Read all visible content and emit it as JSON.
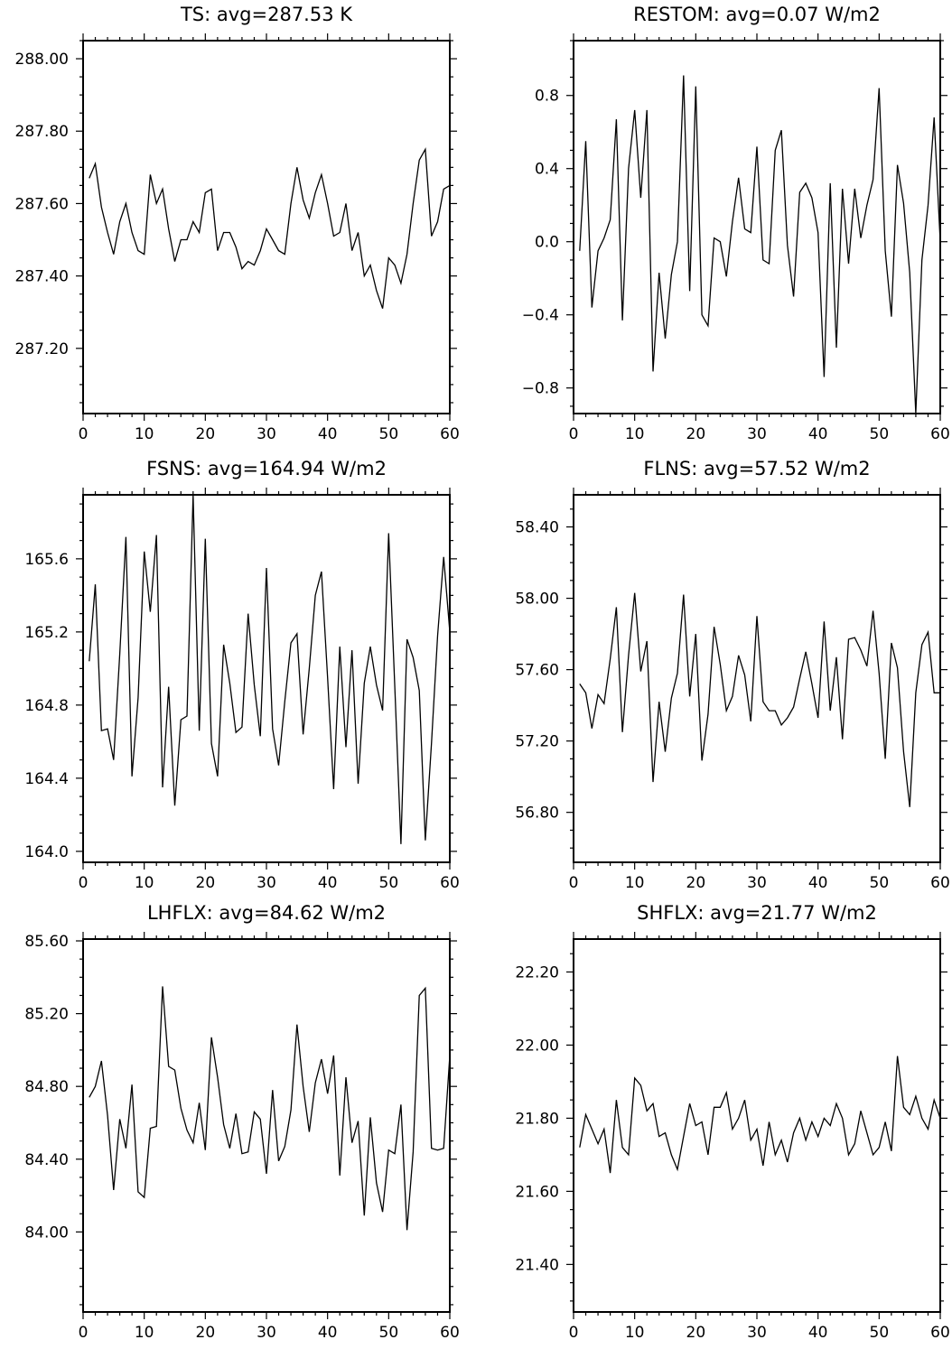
{
  "chart_data": [
    {
      "type": "line",
      "title": "TS: avg=287.53 K",
      "xlim": [
        0,
        60
      ],
      "ylim": [
        287.02,
        288.05
      ],
      "xticks": [
        0,
        10,
        20,
        30,
        40,
        50,
        60
      ],
      "xtick_labels": [
        "0",
        "10",
        "20",
        "30",
        "40",
        "50",
        "60"
      ],
      "yticks": [
        287.2,
        287.4,
        287.6,
        287.8,
        288.0
      ],
      "ytick_labels": [
        "287.20",
        "287.40",
        "287.60",
        "287.80",
        "288.00"
      ],
      "x": [
        1,
        2,
        3,
        4,
        5,
        6,
        7,
        8,
        9,
        10,
        11,
        12,
        13,
        14,
        15,
        16,
        17,
        18,
        19,
        20,
        21,
        22,
        23,
        24,
        25,
        26,
        27,
        28,
        29,
        30,
        31,
        32,
        33,
        34,
        35,
        36,
        37,
        38,
        39,
        40,
        41,
        42,
        43,
        44,
        45,
        46,
        47,
        48,
        49,
        50,
        51,
        52,
        53,
        54,
        55,
        56,
        57,
        58,
        59,
        60
      ],
      "values": [
        287.67,
        287.71,
        287.59,
        287.52,
        287.46,
        287.55,
        287.6,
        287.52,
        287.47,
        287.46,
        287.68,
        287.6,
        287.64,
        287.53,
        287.44,
        287.5,
        287.5,
        287.55,
        287.52,
        287.63,
        287.64,
        287.47,
        287.52,
        287.52,
        287.48,
        287.42,
        287.44,
        287.43,
        287.47,
        287.53,
        287.5,
        287.47,
        287.46,
        287.6,
        287.7,
        287.61,
        287.56,
        287.63,
        287.68,
        287.6,
        287.51,
        287.52,
        287.6,
        287.47,
        287.52,
        287.4,
        287.43,
        287.36,
        287.31,
        287.45,
        287.43,
        287.38,
        287.46,
        287.6,
        287.72,
        287.75,
        287.51,
        287.55,
        287.64,
        287.65
      ]
    },
    {
      "type": "line",
      "title": "RESTOM: avg=0.07 W/m2",
      "xlim": [
        0,
        60
      ],
      "ylim": [
        -0.94,
        1.1
      ],
      "xticks": [
        0,
        10,
        20,
        30,
        40,
        50,
        60
      ],
      "xtick_labels": [
        "0",
        "10",
        "20",
        "30",
        "40",
        "50",
        "60"
      ],
      "yticks": [
        -0.8,
        -0.4,
        0.0,
        0.4,
        0.8
      ],
      "ytick_labels": [
        "−0.8",
        "−0.4",
        "0.0",
        "0.4",
        "0.8"
      ],
      "x": [
        1,
        2,
        3,
        4,
        5,
        6,
        7,
        8,
        9,
        10,
        11,
        12,
        13,
        14,
        15,
        16,
        17,
        18,
        19,
        20,
        21,
        22,
        23,
        24,
        25,
        26,
        27,
        28,
        29,
        30,
        31,
        32,
        33,
        34,
        35,
        36,
        37,
        38,
        39,
        40,
        41,
        42,
        43,
        44,
        45,
        46,
        47,
        48,
        49,
        50,
        51,
        52,
        53,
        54,
        55,
        56,
        57,
        58,
        59,
        60
      ],
      "values": [
        -0.05,
        0.55,
        -0.36,
        -0.05,
        0.02,
        0.12,
        0.67,
        -0.43,
        0.4,
        0.72,
        0.24,
        0.72,
        -0.71,
        -0.17,
        -0.53,
        -0.18,
        0.0,
        0.91,
        -0.27,
        0.85,
        -0.4,
        -0.46,
        0.02,
        0.0,
        -0.19,
        0.11,
        0.35,
        0.07,
        0.05,
        0.52,
        -0.1,
        -0.12,
        0.5,
        0.61,
        -0.02,
        -0.3,
        0.27,
        0.32,
        0.24,
        0.05,
        -0.74,
        0.32,
        -0.58,
        0.29,
        -0.12,
        0.29,
        0.02,
        0.2,
        0.34,
        0.84,
        -0.05,
        -0.41,
        0.42,
        0.21,
        -0.17,
        -0.94,
        -0.1,
        0.2,
        0.68,
        0.0
      ]
    },
    {
      "type": "line",
      "title": "FSNS: avg=164.94 W/m2",
      "xlim": [
        0,
        60
      ],
      "ylim": [
        163.94,
        165.95
      ],
      "xticks": [
        0,
        10,
        20,
        30,
        40,
        50,
        60
      ],
      "xtick_labels": [
        "0",
        "10",
        "20",
        "30",
        "40",
        "50",
        "60"
      ],
      "yticks": [
        164.0,
        164.4,
        164.8,
        165.2,
        165.6
      ],
      "ytick_labels": [
        "164.0",
        "164.4",
        "164.8",
        "165.2",
        "165.6"
      ],
      "x": [
        1,
        2,
        3,
        4,
        5,
        6,
        7,
        8,
        9,
        10,
        11,
        12,
        13,
        14,
        15,
        16,
        17,
        18,
        19,
        20,
        21,
        22,
        23,
        24,
        25,
        26,
        27,
        28,
        29,
        30,
        31,
        32,
        33,
        34,
        35,
        36,
        37,
        38,
        39,
        40,
        41,
        42,
        43,
        44,
        45,
        46,
        47,
        48,
        49,
        50,
        51,
        52,
        53,
        54,
        55,
        56,
        57,
        58,
        59,
        60
      ],
      "values": [
        165.04,
        165.46,
        164.66,
        164.67,
        164.5,
        165.08,
        165.72,
        164.41,
        164.84,
        165.64,
        165.31,
        165.73,
        164.35,
        164.9,
        164.25,
        164.72,
        164.74,
        165.95,
        164.66,
        165.71,
        164.59,
        164.41,
        165.13,
        164.92,
        164.65,
        164.68,
        165.3,
        164.91,
        164.63,
        165.55,
        164.67,
        164.47,
        164.82,
        165.14,
        165.19,
        164.64,
        165.0,
        165.4,
        165.53,
        164.95,
        164.34,
        165.12,
        164.57,
        165.1,
        164.37,
        164.92,
        165.12,
        164.91,
        164.77,
        165.74,
        164.9,
        164.04,
        165.16,
        165.06,
        164.88,
        164.06,
        164.59,
        165.18,
        165.61,
        165.2
      ]
    },
    {
      "type": "line",
      "title": "FLNS: avg=57.52 W/m2",
      "xlim": [
        0,
        60
      ],
      "ylim": [
        56.52,
        58.58
      ],
      "xticks": [
        0,
        10,
        20,
        30,
        40,
        50,
        60
      ],
      "xtick_labels": [
        "0",
        "10",
        "20",
        "30",
        "40",
        "50",
        "60"
      ],
      "yticks": [
        56.8,
        57.2,
        57.6,
        58.0,
        58.4
      ],
      "ytick_labels": [
        "56.80",
        "57.20",
        "57.60",
        "58.00",
        "58.40"
      ],
      "x": [
        1,
        2,
        3,
        4,
        5,
        6,
        7,
        8,
        9,
        10,
        11,
        12,
        13,
        14,
        15,
        16,
        17,
        18,
        19,
        20,
        21,
        22,
        23,
        24,
        25,
        26,
        27,
        28,
        29,
        30,
        31,
        32,
        33,
        34,
        35,
        36,
        37,
        38,
        39,
        40,
        41,
        42,
        43,
        44,
        45,
        46,
        47,
        48,
        49,
        50,
        51,
        52,
        53,
        54,
        55,
        56,
        57,
        58,
        59,
        60
      ],
      "values": [
        57.52,
        57.47,
        57.27,
        57.46,
        57.41,
        57.66,
        57.95,
        57.25,
        57.68,
        58.03,
        57.59,
        57.76,
        56.97,
        57.42,
        57.14,
        57.44,
        57.58,
        58.02,
        57.45,
        57.8,
        57.09,
        57.35,
        57.84,
        57.63,
        57.37,
        57.45,
        57.68,
        57.57,
        57.31,
        57.9,
        57.42,
        57.37,
        57.37,
        57.29,
        57.33,
        57.39,
        57.55,
        57.7,
        57.52,
        57.33,
        57.87,
        57.37,
        57.67,
        57.21,
        57.77,
        57.78,
        57.71,
        57.62,
        57.93,
        57.58,
        57.1,
        57.75,
        57.61,
        57.14,
        56.83,
        57.47,
        57.74,
        57.81,
        57.47,
        57.47
      ]
    },
    {
      "type": "line",
      "title": "LHFLX: avg=84.62 W/m2",
      "xlim": [
        0,
        60
      ],
      "ylim": [
        83.56,
        85.61
      ],
      "xticks": [
        0,
        10,
        20,
        30,
        40,
        50,
        60
      ],
      "xtick_labels": [
        "0",
        "10",
        "20",
        "30",
        "40",
        "50",
        "60"
      ],
      "yticks": [
        84.0,
        84.4,
        84.8,
        85.2,
        85.6
      ],
      "ytick_labels": [
        "84.00",
        "84.40",
        "84.80",
        "85.20",
        "85.60"
      ],
      "x": [
        1,
        2,
        3,
        4,
        5,
        6,
        7,
        8,
        9,
        10,
        11,
        12,
        13,
        14,
        15,
        16,
        17,
        18,
        19,
        20,
        21,
        22,
        23,
        24,
        25,
        26,
        27,
        28,
        29,
        30,
        31,
        32,
        33,
        34,
        35,
        36,
        37,
        38,
        39,
        40,
        41,
        42,
        43,
        44,
        45,
        46,
        47,
        48,
        49,
        50,
        51,
        52,
        53,
        54,
        55,
        56,
        57,
        58,
        59,
        60
      ],
      "values": [
        84.74,
        84.8,
        84.94,
        84.64,
        84.23,
        84.62,
        84.46,
        84.81,
        84.22,
        84.19,
        84.57,
        84.58,
        85.35,
        84.91,
        84.89,
        84.68,
        84.56,
        84.49,
        84.71,
        84.45,
        85.07,
        84.85,
        84.59,
        84.46,
        84.65,
        84.43,
        84.44,
        84.66,
        84.62,
        84.32,
        84.78,
        84.39,
        84.47,
        84.67,
        85.14,
        84.8,
        84.55,
        84.82,
        84.95,
        84.76,
        84.97,
        84.31,
        84.85,
        84.49,
        84.61,
        84.09,
        84.63,
        84.27,
        84.11,
        84.45,
        84.43,
        84.7,
        84.01,
        84.44,
        85.3,
        85.34,
        84.46,
        84.45,
        84.46,
        84.97
      ]
    },
    {
      "type": "line",
      "title": "SHFLX: avg=21.77 W/m2",
      "xlim": [
        0,
        60
      ],
      "ylim": [
        21.27,
        22.29
      ],
      "xticks": [
        0,
        10,
        20,
        30,
        40,
        50,
        60
      ],
      "xtick_labels": [
        "0",
        "10",
        "20",
        "30",
        "40",
        "50",
        "60"
      ],
      "yticks": [
        21.4,
        21.6,
        21.8,
        22.0,
        22.2
      ],
      "ytick_labels": [
        "21.40",
        "21.60",
        "21.80",
        "22.00",
        "22.20"
      ],
      "x": [
        1,
        2,
        3,
        4,
        5,
        6,
        7,
        8,
        9,
        10,
        11,
        12,
        13,
        14,
        15,
        16,
        17,
        18,
        19,
        20,
        21,
        22,
        23,
        24,
        25,
        26,
        27,
        28,
        29,
        30,
        31,
        32,
        33,
        34,
        35,
        36,
        37,
        38,
        39,
        40,
        41,
        42,
        43,
        44,
        45,
        46,
        47,
        48,
        49,
        50,
        51,
        52,
        53,
        54,
        55,
        56,
        57,
        58,
        59,
        60
      ],
      "values": [
        21.72,
        21.81,
        21.77,
        21.73,
        21.77,
        21.65,
        21.85,
        21.72,
        21.7,
        21.91,
        21.89,
        21.82,
        21.84,
        21.75,
        21.76,
        21.7,
        21.66,
        21.75,
        21.84,
        21.78,
        21.79,
        21.7,
        21.83,
        21.83,
        21.87,
        21.77,
        21.8,
        21.85,
        21.74,
        21.77,
        21.67,
        21.79,
        21.7,
        21.74,
        21.68,
        21.76,
        21.8,
        21.74,
        21.79,
        21.75,
        21.8,
        21.78,
        21.84,
        21.8,
        21.7,
        21.73,
        21.82,
        21.76,
        21.7,
        21.72,
        21.79,
        21.71,
        21.97,
        21.83,
        21.81,
        21.86,
        21.8,
        21.77,
        21.85,
        21.8
      ]
    }
  ]
}
